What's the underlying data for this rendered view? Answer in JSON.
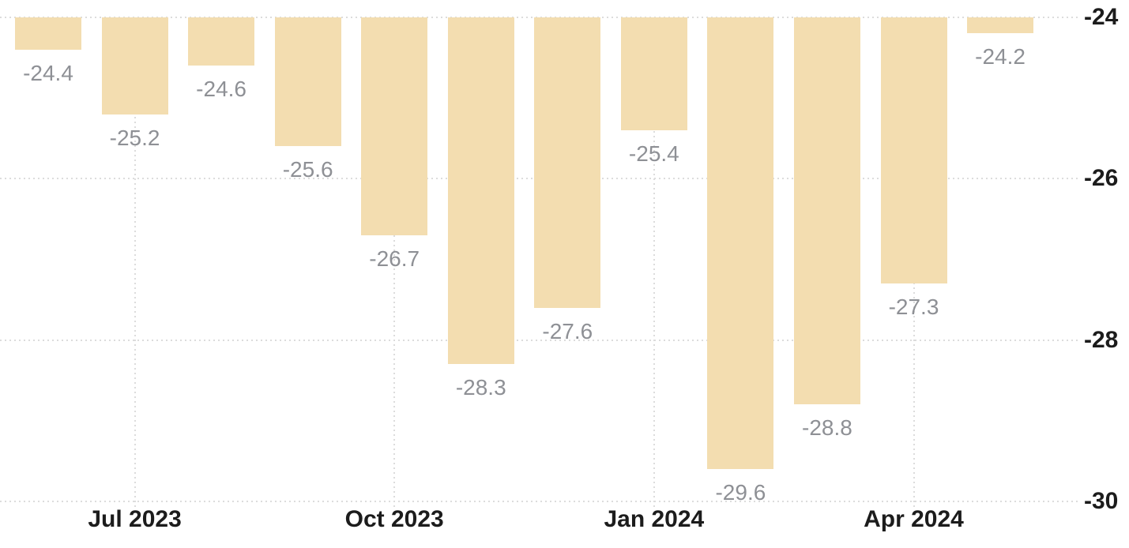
{
  "chart_data": {
    "type": "bar",
    "title": "",
    "bars": [
      {
        "value": -24.4,
        "label": "-24.4"
      },
      {
        "value": -25.2,
        "label": "-25.2"
      },
      {
        "value": -24.6,
        "label": "-24.6"
      },
      {
        "value": -25.6,
        "label": "-25.6"
      },
      {
        "value": -26.7,
        "label": "-26.7"
      },
      {
        "value": -28.3,
        "label": "-28.3"
      },
      {
        "value": -27.6,
        "label": "-27.6"
      },
      {
        "value": -25.4,
        "label": "-25.4"
      },
      {
        "value": -29.6,
        "label": "-29.6"
      },
      {
        "value": -28.8,
        "label": "-28.8"
      },
      {
        "value": -27.3,
        "label": "-27.3"
      },
      {
        "value": -24.2,
        "label": "-24.2"
      }
    ],
    "x_axis": {
      "tick_labels": [
        {
          "label": "Jul 2023",
          "bar_index": 1
        },
        {
          "label": "Oct 2023",
          "bar_index": 4
        },
        {
          "label": "Jan 2024",
          "bar_index": 7
        },
        {
          "label": "Apr 2024",
          "bar_index": 10
        }
      ]
    },
    "y_axis": {
      "side": "right",
      "tick_values": [
        -24,
        -26,
        -28,
        -30
      ],
      "tick_labels": [
        "-24",
        "-26",
        "-28",
        "-30"
      ],
      "range": [
        -30,
        -24
      ]
    },
    "layout_hints": {
      "grid": "dotted",
      "legend": "none",
      "bars_clipped_at_axis_max": true,
      "value_labels_below_bars": true
    },
    "colors": {
      "bar_fill": "#f3ddb0",
      "value_label": "#8e9095",
      "axis_label": "#1c1c1c",
      "gridline": "#dcdcdc",
      "background": "#ffffff"
    }
  }
}
